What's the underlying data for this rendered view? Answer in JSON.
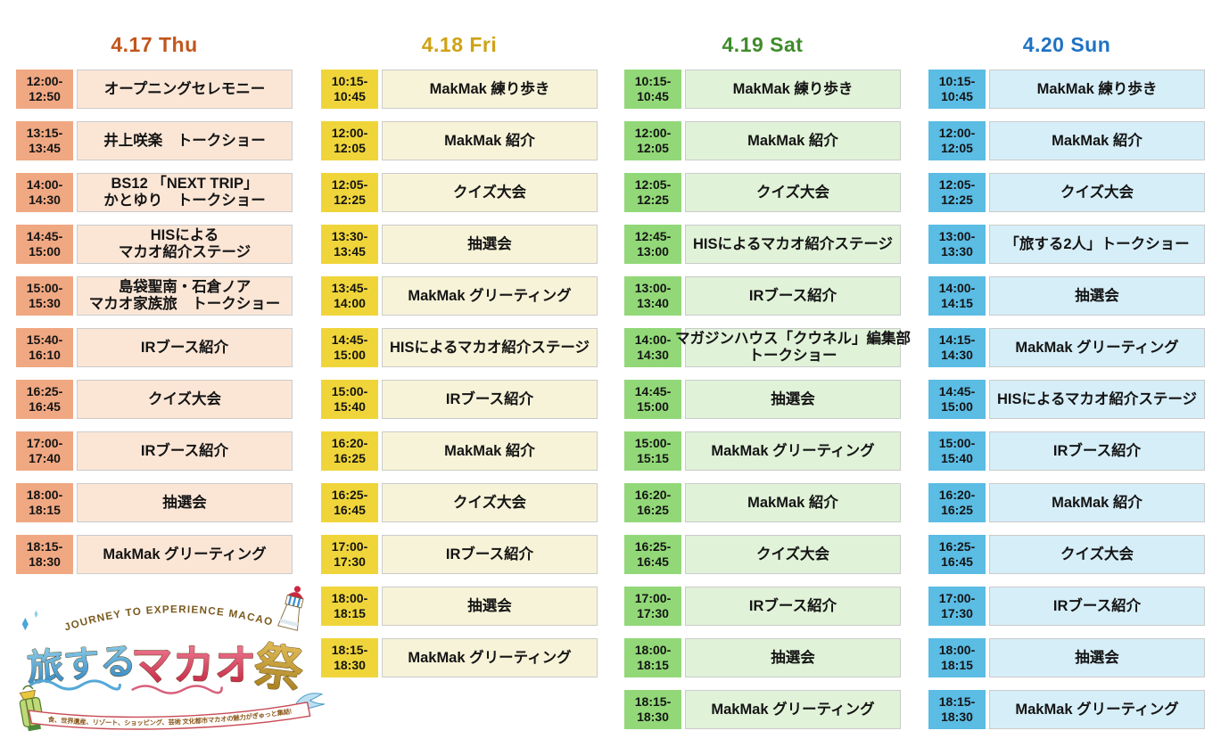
{
  "page": {
    "background": "#FFFFFF",
    "text_color": "#141414",
    "event_cell_border": "#CBCBCB"
  },
  "columns": [
    {
      "id": "thu",
      "header": "4.17 Thu",
      "colors": {
        "header_text": "#C2551C",
        "time_bg": "#F0A882",
        "event_bg": "#FBE6D6"
      },
      "events": [
        {
          "time": [
            "12:00-",
            "12:50"
          ],
          "title": [
            "オープニングセレモニー"
          ]
        },
        {
          "time": [
            "13:15-",
            "13:45"
          ],
          "title": [
            "井上咲楽　トークショー"
          ]
        },
        {
          "time": [
            "14:00-",
            "14:30"
          ],
          "title": [
            "BS12 「NEXT TRIP」",
            "かとゆり　トークショー"
          ]
        },
        {
          "time": [
            "14:45-",
            "15:00"
          ],
          "title": [
            "HISによる",
            "マカオ紹介ステージ"
          ]
        },
        {
          "time": [
            "15:00-",
            "15:30"
          ],
          "title": [
            "島袋聖南・石倉ノア",
            "マカオ家族旅　トークショー"
          ]
        },
        {
          "time": [
            "15:40-",
            "16:10"
          ],
          "title": [
            "IRブース紹介"
          ]
        },
        {
          "time": [
            "16:25-",
            "16:45"
          ],
          "title": [
            "クイズ大会"
          ]
        },
        {
          "time": [
            "17:00-",
            "17:40"
          ],
          "title": [
            "IRブース紹介"
          ]
        },
        {
          "time": [
            "18:00-",
            "18:15"
          ],
          "title": [
            "抽選会"
          ]
        },
        {
          "time": [
            "18:15-",
            "18:30"
          ],
          "title": [
            "MakMak グリーティング"
          ]
        }
      ]
    },
    {
      "id": "fri",
      "header": "4.18 Fri",
      "colors": {
        "header_text": "#CFA216",
        "time_bg": "#F0D53A",
        "event_bg": "#F7F3D8"
      },
      "events": [
        {
          "time": [
            "10:15-",
            "10:45"
          ],
          "title": [
            "MakMak 練り歩き"
          ]
        },
        {
          "time": [
            "12:00-",
            "12:05"
          ],
          "title": [
            "MakMak 紹介"
          ]
        },
        {
          "time": [
            "12:05-",
            "12:25"
          ],
          "title": [
            "クイズ大会"
          ]
        },
        {
          "time": [
            "13:30-",
            "13:45"
          ],
          "title": [
            "抽選会"
          ]
        },
        {
          "time": [
            "13:45-",
            "14:00"
          ],
          "title": [
            "MakMak グリーティング"
          ]
        },
        {
          "time": [
            "14:45-",
            "15:00"
          ],
          "title": [
            "HISによるマカオ紹介ステージ"
          ]
        },
        {
          "time": [
            "15:00-",
            "15:40"
          ],
          "title": [
            "IRブース紹介"
          ]
        },
        {
          "time": [
            "16:20-",
            "16:25"
          ],
          "title": [
            "MakMak 紹介"
          ]
        },
        {
          "time": [
            "16:25-",
            "16:45"
          ],
          "title": [
            "クイズ大会"
          ]
        },
        {
          "time": [
            "17:00-",
            "17:30"
          ],
          "title": [
            "IRブース紹介"
          ]
        },
        {
          "time": [
            "18:00-",
            "18:15"
          ],
          "title": [
            "抽選会"
          ]
        },
        {
          "time": [
            "18:15-",
            "18:30"
          ],
          "title": [
            "MakMak グリーティング"
          ]
        }
      ]
    },
    {
      "id": "sat",
      "header": "4.19 Sat",
      "colors": {
        "header_text": "#3F8C2B",
        "time_bg": "#92D878",
        "event_bg": "#E0F2D8"
      },
      "events": [
        {
          "time": [
            "10:15-",
            "10:45"
          ],
          "title": [
            "MakMak 練り歩き"
          ]
        },
        {
          "time": [
            "12:00-",
            "12:05"
          ],
          "title": [
            "MakMak 紹介"
          ]
        },
        {
          "time": [
            "12:05-",
            "12:25"
          ],
          "title": [
            "クイズ大会"
          ]
        },
        {
          "time": [
            "12:45-",
            "13:00"
          ],
          "title": [
            "HISによるマカオ紹介ステージ"
          ]
        },
        {
          "time": [
            "13:00-",
            "13:40"
          ],
          "title": [
            "IRブース紹介"
          ]
        },
        {
          "time": [
            "14:00-",
            "14:30"
          ],
          "title": [
            "マガジンハウス「クウネル」編集部",
            "トークショー"
          ]
        },
        {
          "time": [
            "14:45-",
            "15:00"
          ],
          "title": [
            "抽選会"
          ]
        },
        {
          "time": [
            "15:00-",
            "15:15"
          ],
          "title": [
            "MakMak グリーティング"
          ]
        },
        {
          "time": [
            "16:20-",
            "16:25"
          ],
          "title": [
            "MakMak 紹介"
          ]
        },
        {
          "time": [
            "16:25-",
            "16:45"
          ],
          "title": [
            "クイズ大会"
          ]
        },
        {
          "time": [
            "17:00-",
            "17:30"
          ],
          "title": [
            "IRブース紹介"
          ]
        },
        {
          "time": [
            "18:00-",
            "18:15"
          ],
          "title": [
            "抽選会"
          ]
        },
        {
          "time": [
            "18:15-",
            "18:30"
          ],
          "title": [
            "MakMak グリーティング"
          ]
        }
      ]
    },
    {
      "id": "sun",
      "header": "4.20 Sun",
      "colors": {
        "header_text": "#1E72C2",
        "time_bg": "#5BBCE4",
        "event_bg": "#D6EEF8"
      },
      "events": [
        {
          "time": [
            "10:15-",
            "10:45"
          ],
          "title": [
            "MakMak 練り歩き"
          ]
        },
        {
          "time": [
            "12:00-",
            "12:05"
          ],
          "title": [
            "MakMak 紹介"
          ]
        },
        {
          "time": [
            "12:05-",
            "12:25"
          ],
          "title": [
            "クイズ大会"
          ]
        },
        {
          "time": [
            "13:00-",
            "13:30"
          ],
          "title": [
            "「旅する2人」トークショー"
          ]
        },
        {
          "time": [
            "14:00-",
            "14:15"
          ],
          "title": [
            "抽選会"
          ]
        },
        {
          "time": [
            "14:15-",
            "14:30"
          ],
          "title": [
            "MakMak グリーティング"
          ]
        },
        {
          "time": [
            "14:45-",
            "15:00"
          ],
          "title": [
            "HISによるマカオ紹介ステージ"
          ]
        },
        {
          "time": [
            "15:00-",
            "15:40"
          ],
          "title": [
            "IRブース紹介"
          ]
        },
        {
          "time": [
            "16:20-",
            "16:25"
          ],
          "title": [
            "MakMak 紹介"
          ]
        },
        {
          "time": [
            "16:25-",
            "16:45"
          ],
          "title": [
            "クイズ大会"
          ]
        },
        {
          "time": [
            "17:00-",
            "17:30"
          ],
          "title": [
            "IRブース紹介"
          ]
        },
        {
          "time": [
            "18:00-",
            "18:15"
          ],
          "title": [
            "抽選会"
          ]
        },
        {
          "time": [
            "18:15-",
            "18:30"
          ],
          "title": [
            "MakMak グリーティング"
          ]
        }
      ]
    }
  ],
  "logo": {
    "arc_text": "JOURNEY TO EXPERIENCE MACAO",
    "title_part1": "旅する",
    "title_part2": "マカオ",
    "title_part3": "祭",
    "ribbon_text": "食、世界遺産、リゾート、ショッピング、芸術 文化都市マカオの魅力がぎゅっと集結!",
    "colors": {
      "blue": "#3E96CC",
      "red": "#C9243F",
      "gold": "#B8902E",
      "brown": "#7B5A1E"
    }
  }
}
